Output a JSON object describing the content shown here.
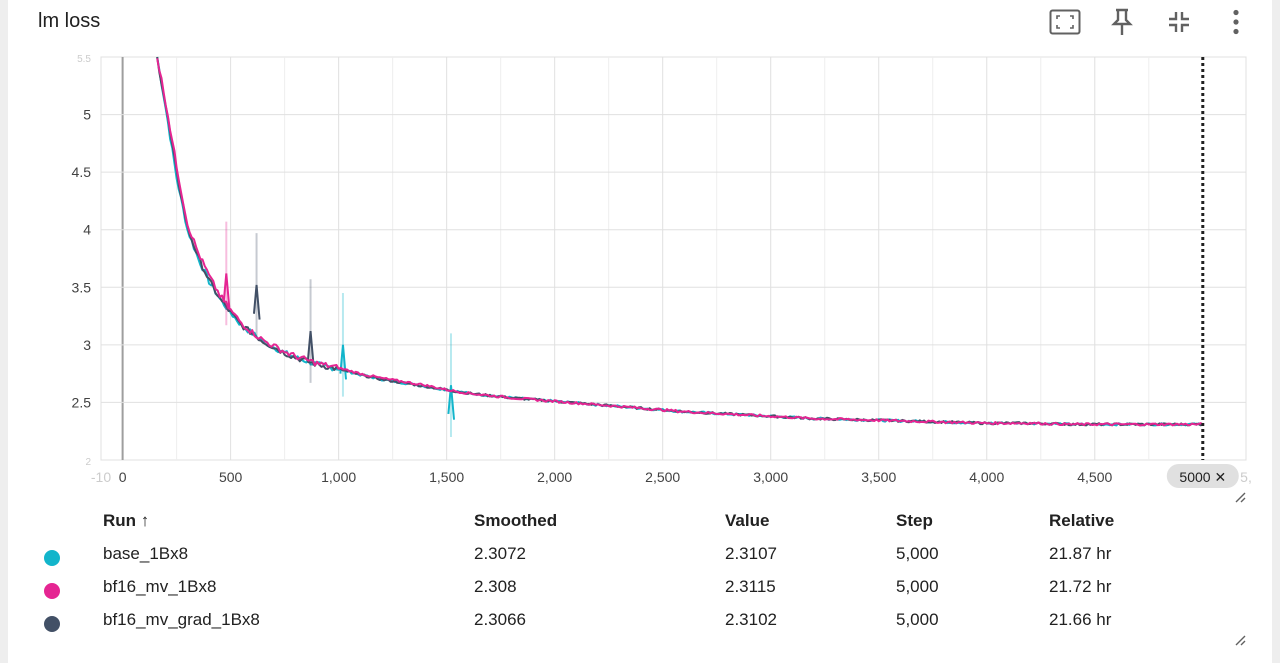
{
  "card": {
    "title": "lm loss",
    "toolbar": [
      "fit-to-screen-icon",
      "pin-icon",
      "collapse-icon",
      "more-vert-icon"
    ]
  },
  "chart_data": {
    "type": "line",
    "xlabel": "",
    "ylabel": "",
    "xlim": [
      -100,
      5200
    ],
    "ylim": [
      2.0,
      5.5
    ],
    "x_ticks": [
      "0",
      "500",
      "1,000",
      "1,500",
      "2,000",
      "2,500",
      "3,000",
      "3,500",
      "4,000",
      "4,500"
    ],
    "x_tick_values": [
      0,
      500,
      1000,
      1500,
      2000,
      2500,
      3000,
      3500,
      4000,
      4500
    ],
    "x_edge_ticks": [
      "-10",
      "5,"
    ],
    "y_ticks": [
      "5",
      "4.5",
      "4",
      "3.5",
      "3",
      "2.5"
    ],
    "y_tick_values": [
      5,
      4.5,
      4,
      3.5,
      3,
      2.5
    ],
    "y_edge_ticks": [
      "5.5",
      "2"
    ],
    "grid": true,
    "cursor": {
      "step": 5000,
      "label": "5000 ✕"
    },
    "series": [
      {
        "name": "base_1Bx8",
        "color": "#12b5cb",
        "points": [
          [
            160,
            5.5
          ],
          [
            200,
            5.05
          ],
          [
            250,
            4.45
          ],
          [
            300,
            4.0
          ],
          [
            350,
            3.75
          ],
          [
            400,
            3.55
          ],
          [
            450,
            3.4
          ],
          [
            500,
            3.28
          ],
          [
            550,
            3.17
          ],
          [
            600,
            3.1
          ],
          [
            650,
            3.03
          ],
          [
            700,
            2.98
          ],
          [
            750,
            2.93
          ],
          [
            800,
            2.89
          ],
          [
            850,
            2.86
          ],
          [
            900,
            2.83
          ],
          [
            950,
            2.81
          ],
          [
            1000,
            2.79
          ],
          [
            1100,
            2.74
          ],
          [
            1200,
            2.7
          ],
          [
            1300,
            2.67
          ],
          [
            1400,
            2.64
          ],
          [
            1500,
            2.61
          ],
          [
            1600,
            2.58
          ],
          [
            1800,
            2.54
          ],
          [
            2000,
            2.51
          ],
          [
            2200,
            2.48
          ],
          [
            2400,
            2.45
          ],
          [
            2600,
            2.42
          ],
          [
            2800,
            2.4
          ],
          [
            3000,
            2.38
          ],
          [
            3200,
            2.36
          ],
          [
            3400,
            2.35
          ],
          [
            3600,
            2.34
          ],
          [
            3800,
            2.33
          ],
          [
            4000,
            2.32
          ],
          [
            4200,
            2.32
          ],
          [
            4400,
            2.31
          ],
          [
            4600,
            2.31
          ],
          [
            4800,
            2.31
          ],
          [
            5000,
            2.31
          ]
        ],
        "spikes": [
          [
            1020,
            3.0
          ],
          [
            1520,
            2.65
          ]
        ]
      },
      {
        "name": "bf16_mv_1Bx8",
        "color": "#e52592",
        "points": [
          [
            160,
            5.5
          ],
          [
            200,
            5.1
          ],
          [
            250,
            4.55
          ],
          [
            300,
            4.05
          ],
          [
            350,
            3.8
          ],
          [
            400,
            3.6
          ],
          [
            450,
            3.43
          ],
          [
            500,
            3.3
          ],
          [
            550,
            3.19
          ],
          [
            600,
            3.11
          ],
          [
            650,
            3.04
          ],
          [
            700,
            2.99
          ],
          [
            750,
            2.94
          ],
          [
            800,
            2.9
          ],
          [
            850,
            2.87
          ],
          [
            900,
            2.84
          ],
          [
            950,
            2.82
          ],
          [
            1000,
            2.8
          ],
          [
            1100,
            2.75
          ],
          [
            1200,
            2.71
          ],
          [
            1300,
            2.68
          ],
          [
            1400,
            2.65
          ],
          [
            1500,
            2.61
          ],
          [
            1600,
            2.58
          ],
          [
            1800,
            2.54
          ],
          [
            2000,
            2.51
          ],
          [
            2200,
            2.48
          ],
          [
            2400,
            2.45
          ],
          [
            2600,
            2.42
          ],
          [
            2800,
            2.4
          ],
          [
            3000,
            2.38
          ],
          [
            3200,
            2.36
          ],
          [
            3400,
            2.35
          ],
          [
            3600,
            2.34
          ],
          [
            3800,
            2.33
          ],
          [
            4000,
            2.32
          ],
          [
            4200,
            2.32
          ],
          [
            4400,
            2.31
          ],
          [
            4600,
            2.31
          ],
          [
            4800,
            2.31
          ],
          [
            5000,
            2.31
          ]
        ],
        "spikes": [
          [
            480,
            3.62
          ]
        ]
      },
      {
        "name": "bf16_mv_grad_1Bx8",
        "color": "#425066",
        "points": [
          [
            160,
            5.5
          ],
          [
            200,
            5.07
          ],
          [
            250,
            4.5
          ],
          [
            300,
            4.02
          ],
          [
            350,
            3.76
          ],
          [
            400,
            3.56
          ],
          [
            450,
            3.4
          ],
          [
            500,
            3.28
          ],
          [
            550,
            3.17
          ],
          [
            600,
            3.1
          ],
          [
            650,
            3.03
          ],
          [
            700,
            2.98
          ],
          [
            750,
            2.93
          ],
          [
            800,
            2.89
          ],
          [
            850,
            2.86
          ],
          [
            900,
            2.83
          ],
          [
            950,
            2.81
          ],
          [
            1000,
            2.79
          ],
          [
            1100,
            2.74
          ],
          [
            1200,
            2.7
          ],
          [
            1300,
            2.67
          ],
          [
            1400,
            2.64
          ],
          [
            1500,
            2.61
          ],
          [
            1600,
            2.58
          ],
          [
            1800,
            2.54
          ],
          [
            2000,
            2.51
          ],
          [
            2200,
            2.48
          ],
          [
            2400,
            2.45
          ],
          [
            2600,
            2.42
          ],
          [
            2800,
            2.4
          ],
          [
            3000,
            2.38
          ],
          [
            3200,
            2.36
          ],
          [
            3400,
            2.35
          ],
          [
            3600,
            2.34
          ],
          [
            3800,
            2.33
          ],
          [
            4000,
            2.32
          ],
          [
            4200,
            2.32
          ],
          [
            4400,
            2.31
          ],
          [
            4600,
            2.31
          ],
          [
            4800,
            2.31
          ],
          [
            5000,
            2.31
          ]
        ],
        "spikes": [
          [
            620,
            3.52
          ],
          [
            870,
            3.12
          ]
        ]
      }
    ]
  },
  "table": {
    "headers": {
      "run": "Run ↑",
      "smoothed": "Smoothed",
      "value": "Value",
      "step": "Step",
      "relative": "Relative"
    },
    "rows": [
      {
        "run": "base_1Bx8",
        "color": "#12b5cb",
        "smoothed": "2.3072",
        "value": "2.3107",
        "step": "5,000",
        "relative": "21.87 hr"
      },
      {
        "run": "bf16_mv_1Bx8",
        "color": "#e52592",
        "smoothed": "2.308",
        "value": "2.3115",
        "step": "5,000",
        "relative": "21.72 hr"
      },
      {
        "run": "bf16_mv_grad_1Bx8",
        "color": "#425066",
        "smoothed": "2.3066",
        "value": "2.3102",
        "step": "5,000",
        "relative": "21.66 hr"
      }
    ]
  }
}
